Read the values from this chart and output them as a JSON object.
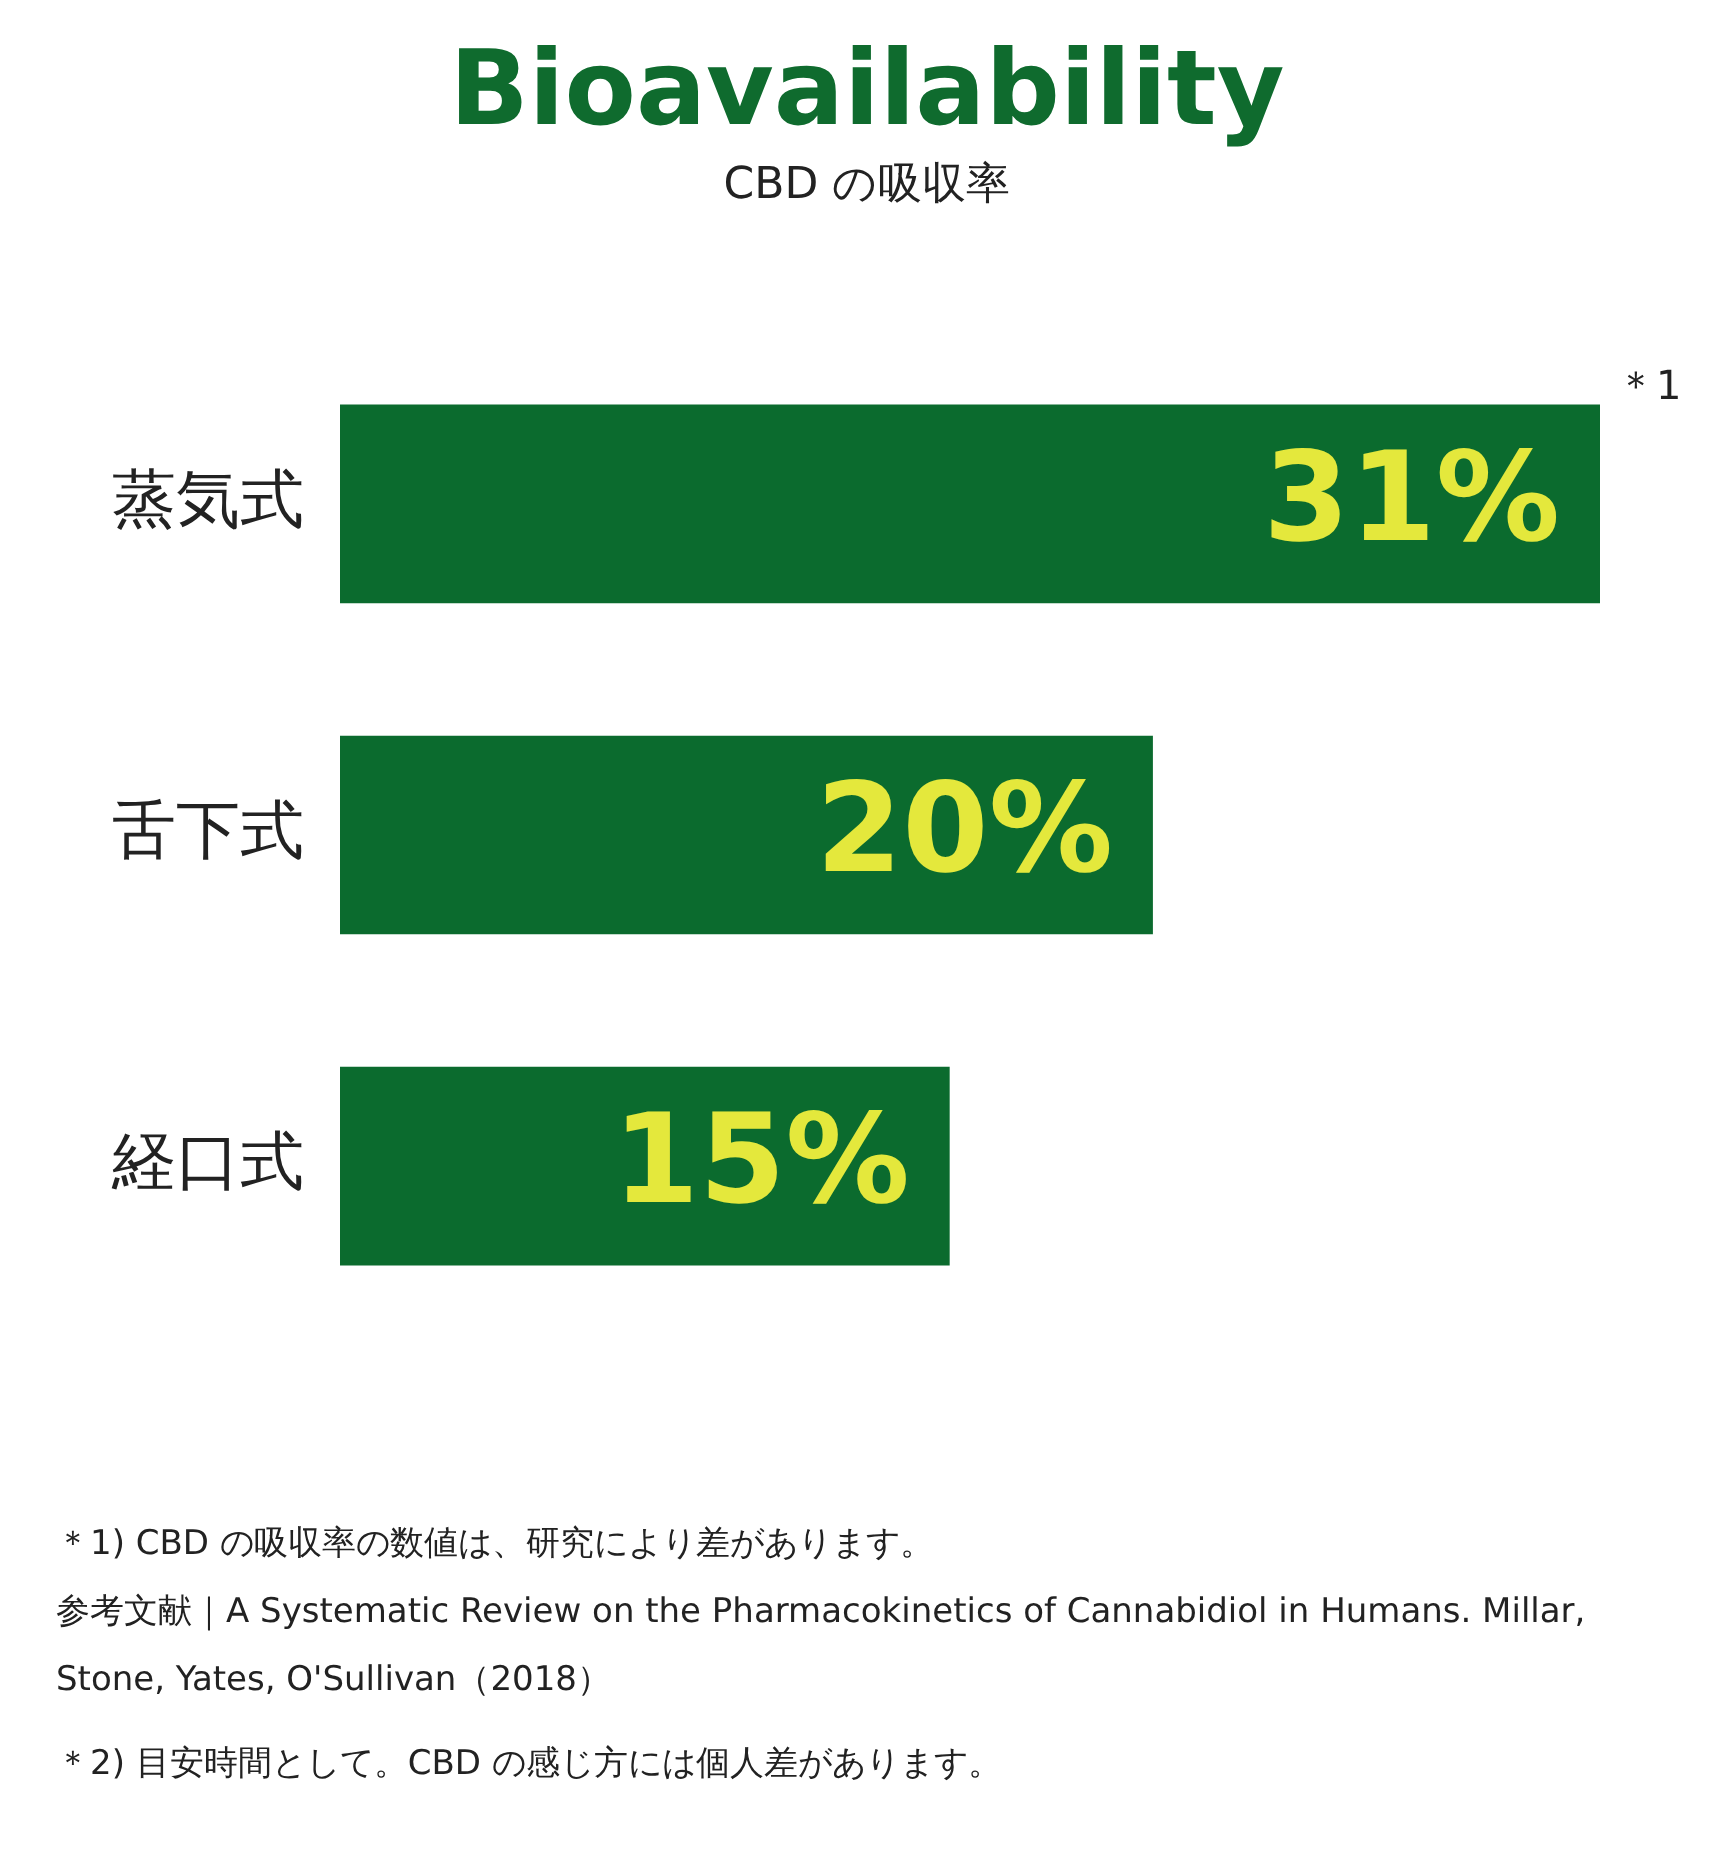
{
  "chart_data": {
    "type": "bar",
    "orientation": "horizontal",
    "title": "Bioavailability",
    "subtitle": "CBD の吸収率",
    "categories": [
      "蒸気式",
      "舌下式",
      "経口式"
    ],
    "values": [
      31,
      20,
      15
    ],
    "color": "#0b6b2e",
    "value_labels": [
      "31%",
      "20%",
      "15%"
    ],
    "xlim": [
      0,
      31
    ],
    "tick_labels": "y",
    "annotations": [
      {
        "text": "＊1",
        "x": 31,
        "y": "蒸気式"
      },
      "＊1) CBD の吸収率の数値は、研究により差があります。",
      "参考文献｜A Systematic Review on the Pharmacokinetics of Cannabidiol in Humans. Millar, Stone, Yates, O'Sullivan（2018）",
      "＊2) 目安時間として。CBD の感じ方には個人差があります。"
    ]
  }
}
